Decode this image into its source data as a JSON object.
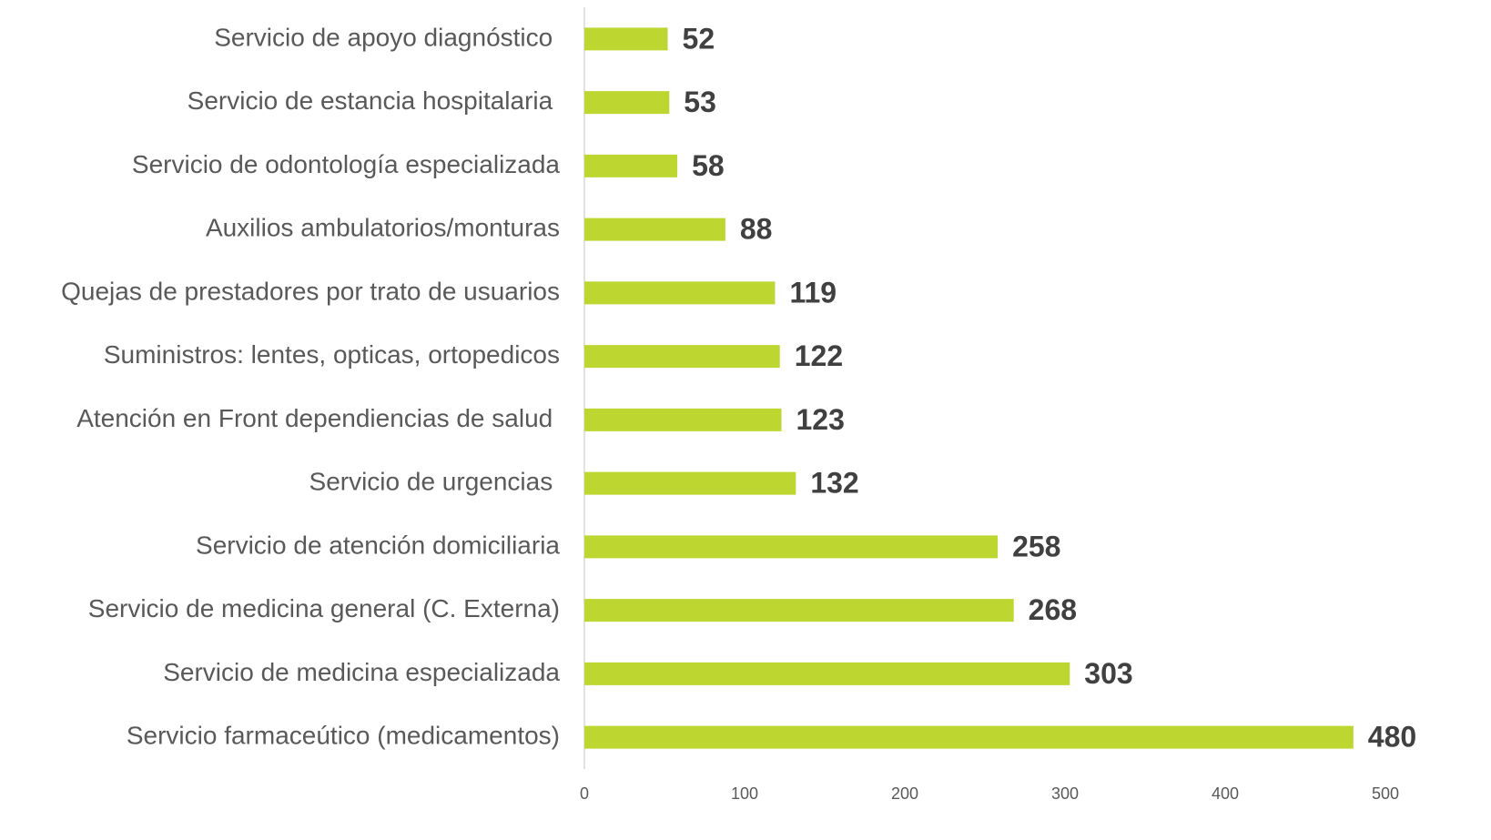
{
  "chart_data": {
    "type": "barh",
    "categories": [
      "Servicio de apoyo diagnóstico ",
      "Servicio de estancia hospitalaria ",
      "Servicio de odontología especializada",
      "Auxilios ambulatorios/monturas",
      "Quejas de prestadores por trato de usuarios",
      "Suministros: lentes, opticas, ortopedicos",
      "Atención en Front dependiencias de salud ",
      "Servicio de urgencias ",
      "Servicio de atención domiciliaria",
      "Servicio de medicina general (C. Externa)",
      "Servicio de medicina especializada",
      "Servicio farmaceútico (medicamentos)"
    ],
    "values": [
      52,
      53,
      58,
      88,
      119,
      122,
      123,
      132,
      258,
      268,
      303,
      480
    ],
    "color": "#bdd630",
    "xlim": [
      0,
      500
    ],
    "xticks": [
      0,
      100,
      200,
      300,
      400,
      500
    ],
    "grid": false
  }
}
